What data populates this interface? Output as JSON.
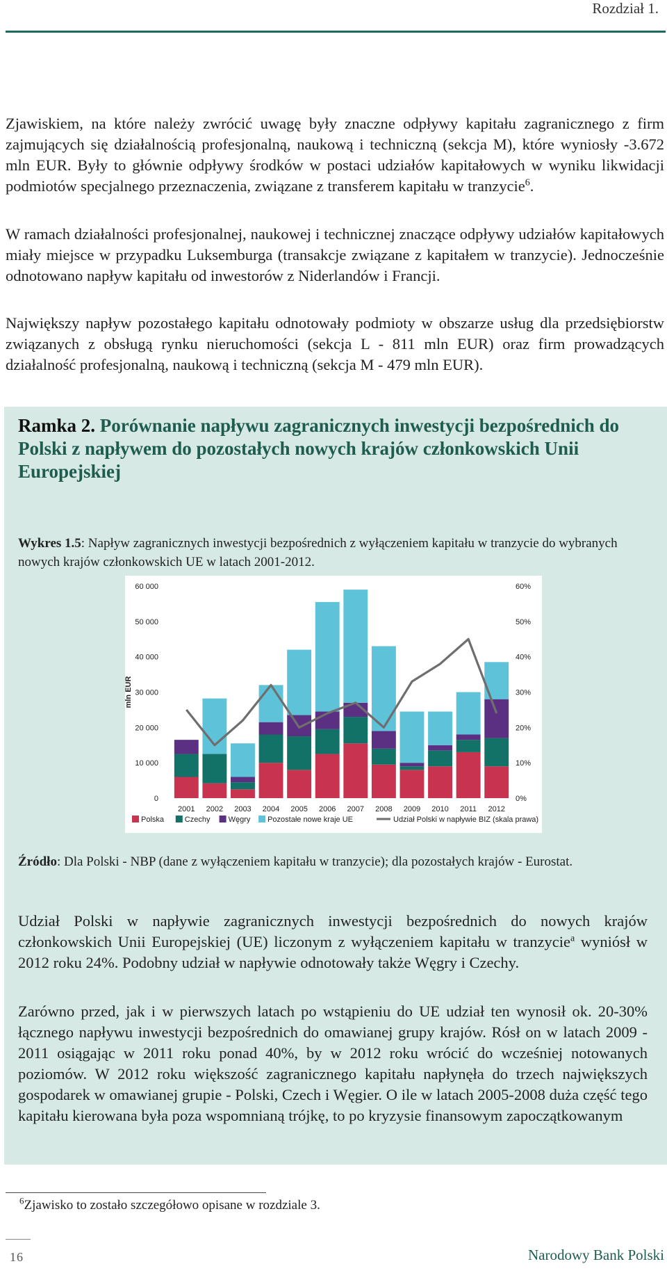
{
  "header": {
    "chapter": "Rozdział 1."
  },
  "paragraphs": {
    "p1a": "Zjawiskiem, na które należy zwrócić uwagę były znaczne odpływy kapitału zagranicznego z firm zajmujących się działalnością profesjonalną, naukową i techniczną (sekcja M), które wyniosły -3.672 mln EUR. Były to głównie odpływy środków w postaci udziałów kapitałowych w wyniku likwidacji podmiotów specjalnego przeznaczenia, związane z transferem kapitału w tranzycie",
    "p1_sup": "6",
    "p1b": ".",
    "p2": "W ramach działalności profesjonalnej, naukowej i technicznej znaczące odpływy udziałów kapitałowych miały miejsce w przypadku Luksemburga (transakcje związane z kapitałem w tranzycie). Jednocześnie odnotowano napływ kapitału od inwestorów z Niderlandów i Francji.",
    "p3": "Największy napływ pozostałego kapitału odnotowały podmioty w obszarze usług dla przedsiębiorstw związanych z obsługą rynku nieruchomości (sekcja L - 811 mln EUR) oraz firm prowadzących działalność profesjonalną, naukową i techniczną (sekcja M - 479 mln EUR)."
  },
  "box": {
    "title_label": "Ramka 2.",
    "title_text": "Porównanie napływu zagranicznych inwestycji bezpośrednich do Polski z napływem do pozostałych nowych krajów członkowskich Unii Europejskiej",
    "caption_label": "Wykres 1.5",
    "caption_text": ": Napływ zagranicznych inwestycji bezpośrednich z wyłączeniem kapitału w tranzycie do wybranych nowych krajów członkowskich UE w latach 2001-2012.",
    "source_label": "Źródło",
    "source_text": ": Dla Polski - NBP (dane z wyłączeniem kapitału w tranzycie); dla pozostałych krajów - Eurostat.",
    "p4a": "Udział Polski w napływie zagranicznych inwestycji bezpośrednich do nowych krajów członkowskich Unii Europejskiej (UE) liczonym z wyłączeniem kapitału w tranzycie",
    "p4_sup": "a",
    "p4b": " wyniósł w 2012 roku 24%. Podobny udział w napływie odnotowały także Węgry i Czechy.",
    "p5": "Zarówno przed, jak i w pierwszych latach po wstąpieniu do UE udział ten wynosił ok. 20-30% łącznego napływu inwestycji bezpośrednich do omawianej grupy krajów. Rósł on w latach 2009 - 2011 osiągając w 2011 roku ponad 40%, by w 2012 roku wrócić do wcześniej notowanych poziomów. W 2012 roku większość zagranicznego kapitału napłynęła do trzech największych gospodarek w omawianej grupie - Polski, Czech i Węgier. O ile w latach 2005-2008 duża część tego kapitału kierowana była poza wspomnianą trójkę, to po kryzysie finansowym zapoczątkowanym"
  },
  "footnote": {
    "num": "6",
    "text": "Zjawisko to zostało szczegółowo opisane w rozdziale 3."
  },
  "footer": {
    "page": "16",
    "brand": "Narodowy Bank Polski"
  },
  "chart_data": {
    "type": "bar",
    "stacked": true,
    "categories": [
      "2001",
      "2002",
      "2003",
      "2004",
      "2005",
      "2006",
      "2007",
      "2008",
      "2009",
      "2010",
      "2011",
      "2012"
    ],
    "ylabel": "mln EUR",
    "ylim": [
      0,
      60000
    ],
    "y_ticks": [
      "0",
      "10 000",
      "20 000",
      "30 000",
      "40 000",
      "50 000",
      "60 000"
    ],
    "y2lim": [
      0,
      60
    ],
    "y2_ticks": [
      "0%",
      "10%",
      "20%",
      "30%",
      "40%",
      "50%",
      "60%"
    ],
    "series": [
      {
        "name": "Polska",
        "color": "#c8334f",
        "values": [
          6000,
          4200,
          2500,
          10000,
          8000,
          12500,
          15500,
          9500,
          8000,
          9000,
          13000,
          9000
        ]
      },
      {
        "name": "Czechy",
        "color": "#137267",
        "values": [
          6500,
          8300,
          2000,
          8000,
          9500,
          7000,
          7500,
          4500,
          1000,
          4500,
          3500,
          8000
        ]
      },
      {
        "name": "Węgry",
        "color": "#5b2f82",
        "values": [
          4000,
          0,
          1500,
          3500,
          6000,
          5000,
          4000,
          5000,
          1000,
          1500,
          1500,
          11000
        ]
      },
      {
        "name": "Pozostałe nowe kraje UE",
        "color": "#5ec3d8",
        "values": [
          0,
          15700,
          9500,
          10500,
          18500,
          31000,
          32000,
          24000,
          14500,
          9500,
          12000,
          10500
        ]
      }
    ],
    "line": {
      "name": "Udział Polski w napływie BIZ (skala prawa)",
      "color": "#6e6e6e",
      "values": [
        25,
        15,
        22,
        32,
        20,
        24,
        27,
        20,
        33,
        38,
        45,
        24
      ]
    },
    "legend_position": "bottom",
    "grid": false
  }
}
